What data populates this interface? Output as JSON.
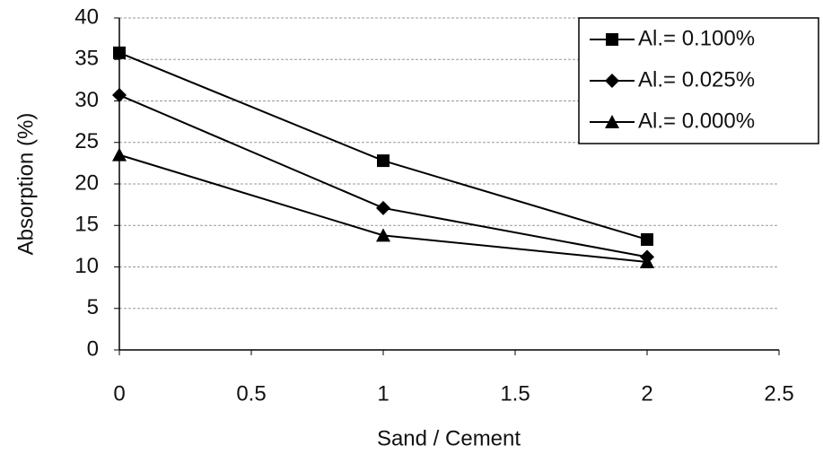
{
  "chart_data": {
    "type": "line",
    "x_label": "Sand / Cement",
    "y_label": "Absorption (%)",
    "x": [
      0,
      1,
      2
    ],
    "series": [
      {
        "name": "Al.= 0.100%",
        "color": "#000000",
        "marker": "square",
        "values": [
          35.8,
          22.8,
          13.3
        ]
      },
      {
        "name": "Al.= 0.025%",
        "color": "#000000",
        "marker": "diamond",
        "values": [
          30.7,
          17.1,
          11.2
        ]
      },
      {
        "name": "Al.= 0.000%",
        "color": "#000000",
        "marker": "triangle",
        "values": [
          23.5,
          13.8,
          10.6
        ]
      }
    ],
    "xlim": [
      0,
      2.5
    ],
    "xticks": [
      0,
      0.5,
      1,
      1.5,
      2,
      2.5
    ],
    "ylim": [
      0,
      40
    ],
    "yticks": [
      0,
      5,
      10,
      15,
      20,
      25,
      30,
      35,
      40
    ],
    "grid": true,
    "legend": "upper right"
  }
}
